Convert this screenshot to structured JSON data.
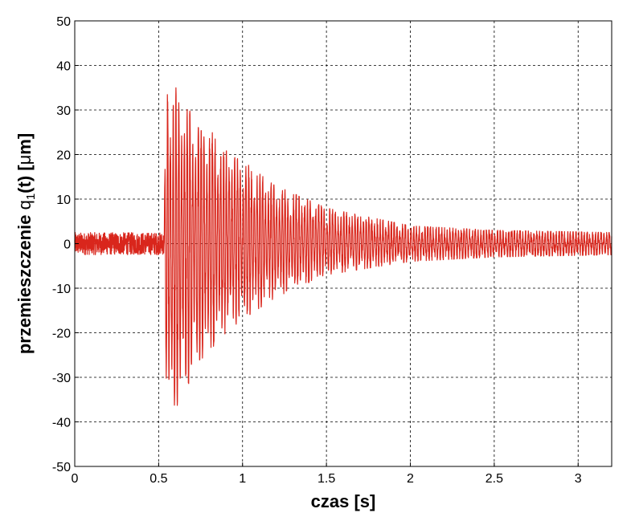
{
  "chart_data": {
    "type": "line",
    "xlabel": "czas [s]",
    "ylabel_parts": {
      "main": "przemieszczenie ",
      "symbol": "q",
      "subscript": "1",
      "rest": "(t) [",
      "mu": "μ",
      "unit": "m]"
    },
    "xlim": [
      0,
      3.2
    ],
    "ylim": [
      -50,
      50
    ],
    "x_ticks": [
      "0",
      "0.5",
      "1",
      "1.5",
      "2",
      "2.5",
      "3"
    ],
    "y_ticks": [
      "50",
      "40",
      "30",
      "20",
      "10",
      "0",
      "-10",
      "-20",
      "-30",
      "-40",
      "-50"
    ],
    "grid": true,
    "series": [
      {
        "color": "#d9261c",
        "description_points": {
          "t": [
            0,
            0.5,
            0.53,
            0.55,
            0.6,
            0.7,
            0.8,
            0.9,
            1.0,
            1.2,
            1.5,
            2.0,
            2.5,
            3.2
          ],
          "envelope_upper": [
            2.5,
            2.5,
            2.5,
            38,
            36,
            30,
            26,
            22,
            19,
            13,
            8,
            4,
            3,
            2.5
          ],
          "envelope_lower": [
            -2.5,
            -2.5,
            -2.5,
            -41,
            -38,
            -30,
            -25,
            -20,
            -17,
            -12,
            -7,
            -4,
            -3,
            -2.5
          ]
        }
      }
    ]
  }
}
